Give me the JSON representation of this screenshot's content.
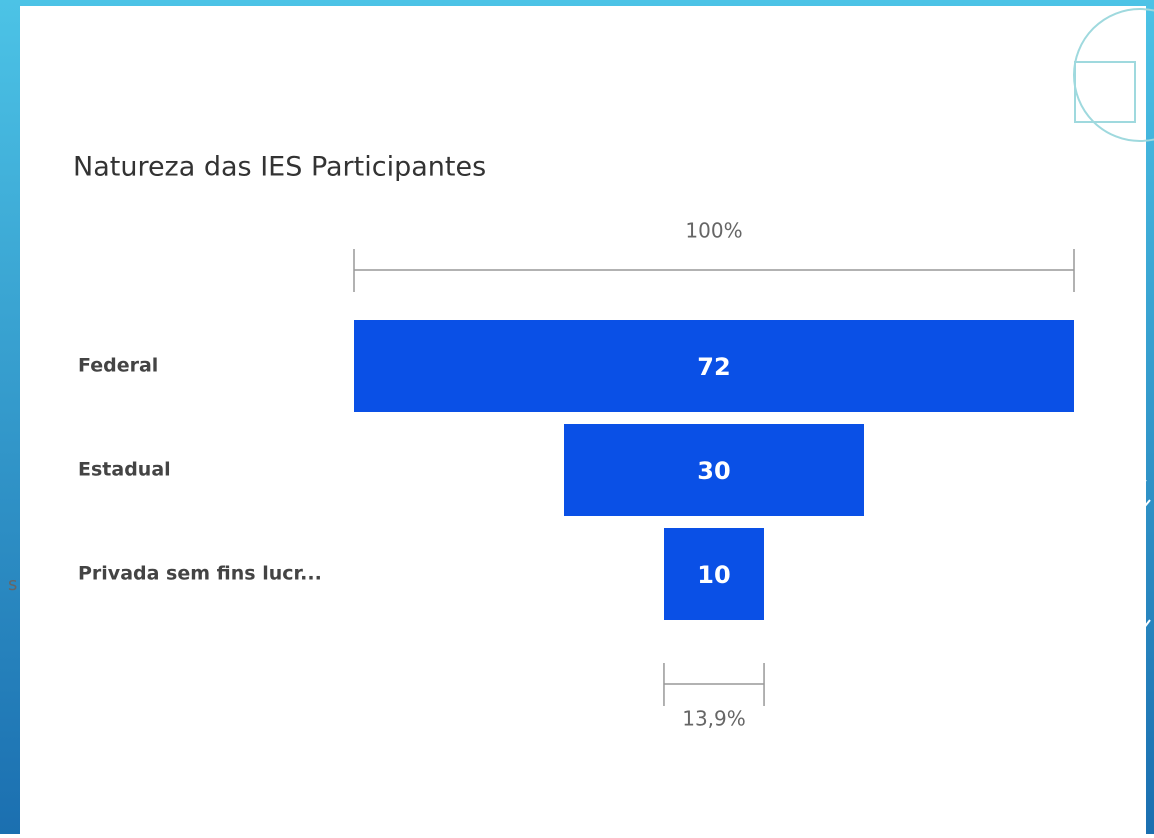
{
  "chart_data": {
    "type": "funnel",
    "title": "Natureza das IES Participantes",
    "categories": [
      "Federal",
      "Estadual",
      "Privada sem fins lucr..."
    ],
    "values": [
      72,
      30,
      10
    ],
    "color": "#0a50e6",
    "annotations": [
      {
        "value": 100,
        "label": "100%"
      },
      {
        "value": 13.9,
        "label": "13,9%"
      }
    ]
  },
  "side_fragment": "s"
}
